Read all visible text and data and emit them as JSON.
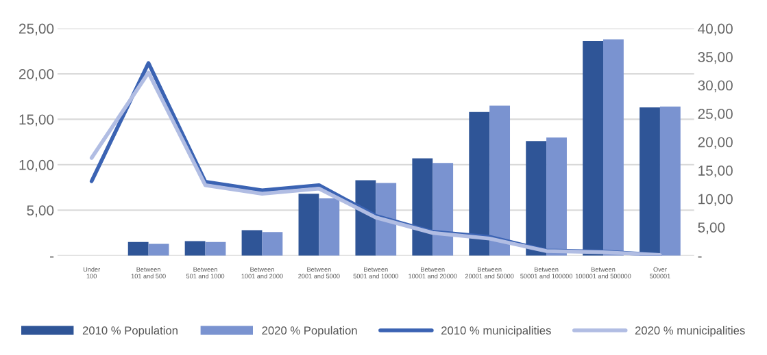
{
  "chart_data": {
    "type": "bar",
    "categories": [
      "Under\n100",
      "Between\n101 and 500",
      "Between\n501 and 1000",
      "Between\n1001 and 2000",
      "Between\n2001 and 5000",
      "Between\n5001 and 10000",
      "Between\n10001 and 20000",
      "Between\n20001 and 50000",
      "Between\n50001 and 100000",
      "Between\n100001 and 500000",
      "Over\n500001"
    ],
    "series": [
      {
        "name": "2010 % Population",
        "color": "#2f5597",
        "values": [
          0,
          1.5,
          1.6,
          2.8,
          6.8,
          8.3,
          10.7,
          15.8,
          12.6,
          23.6,
          16.3
        ]
      },
      {
        "name": "2020 % Population",
        "color": "#7a93d0",
        "values": [
          0,
          1.3,
          1.5,
          2.6,
          6.3,
          8.0,
          10.2,
          16.5,
          13.0,
          23.8,
          16.4
        ]
      },
      {
        "name": "2010 % municipalities",
        "type": "line",
        "axis": "y2",
        "color": "#3b63b3",
        "values": [
          13.1,
          33.9,
          13.0,
          11.5,
          12.4,
          7.0,
          4.2,
          3.3,
          0.9,
          0.7,
          0.1
        ]
      },
      {
        "name": "2020 % municipalities",
        "type": "line",
        "axis": "y2",
        "color": "#b1bde3",
        "values": [
          17.2,
          32.2,
          12.4,
          10.9,
          11.8,
          6.7,
          4.0,
          3.0,
          0.8,
          0.6,
          0.1
        ]
      }
    ],
    "ylim": [
      0,
      25
    ],
    "yticks": [
      {
        "value": 0,
        "label": "-"
      },
      {
        "value": 5,
        "label": "5,00"
      },
      {
        "value": 10,
        "label": "10,00"
      },
      {
        "value": 15,
        "label": "15,00"
      },
      {
        "value": 20,
        "label": "20,00"
      },
      {
        "value": 25,
        "label": "25,00"
      }
    ],
    "y2lim": [
      0,
      40
    ],
    "y2ticks": [
      {
        "value": 0,
        "label": "-"
      },
      {
        "value": 5,
        "label": "5,00"
      },
      {
        "value": 10,
        "label": "10,00"
      },
      {
        "value": 15,
        "label": "15,00"
      },
      {
        "value": 20,
        "label": "20,00"
      },
      {
        "value": 25,
        "label": "25,00"
      },
      {
        "value": 30,
        "label": "30,00"
      },
      {
        "value": 35,
        "label": "35,00"
      },
      {
        "value": 40,
        "label": "40,00"
      }
    ],
    "grid": "y",
    "legend": "bottom"
  }
}
